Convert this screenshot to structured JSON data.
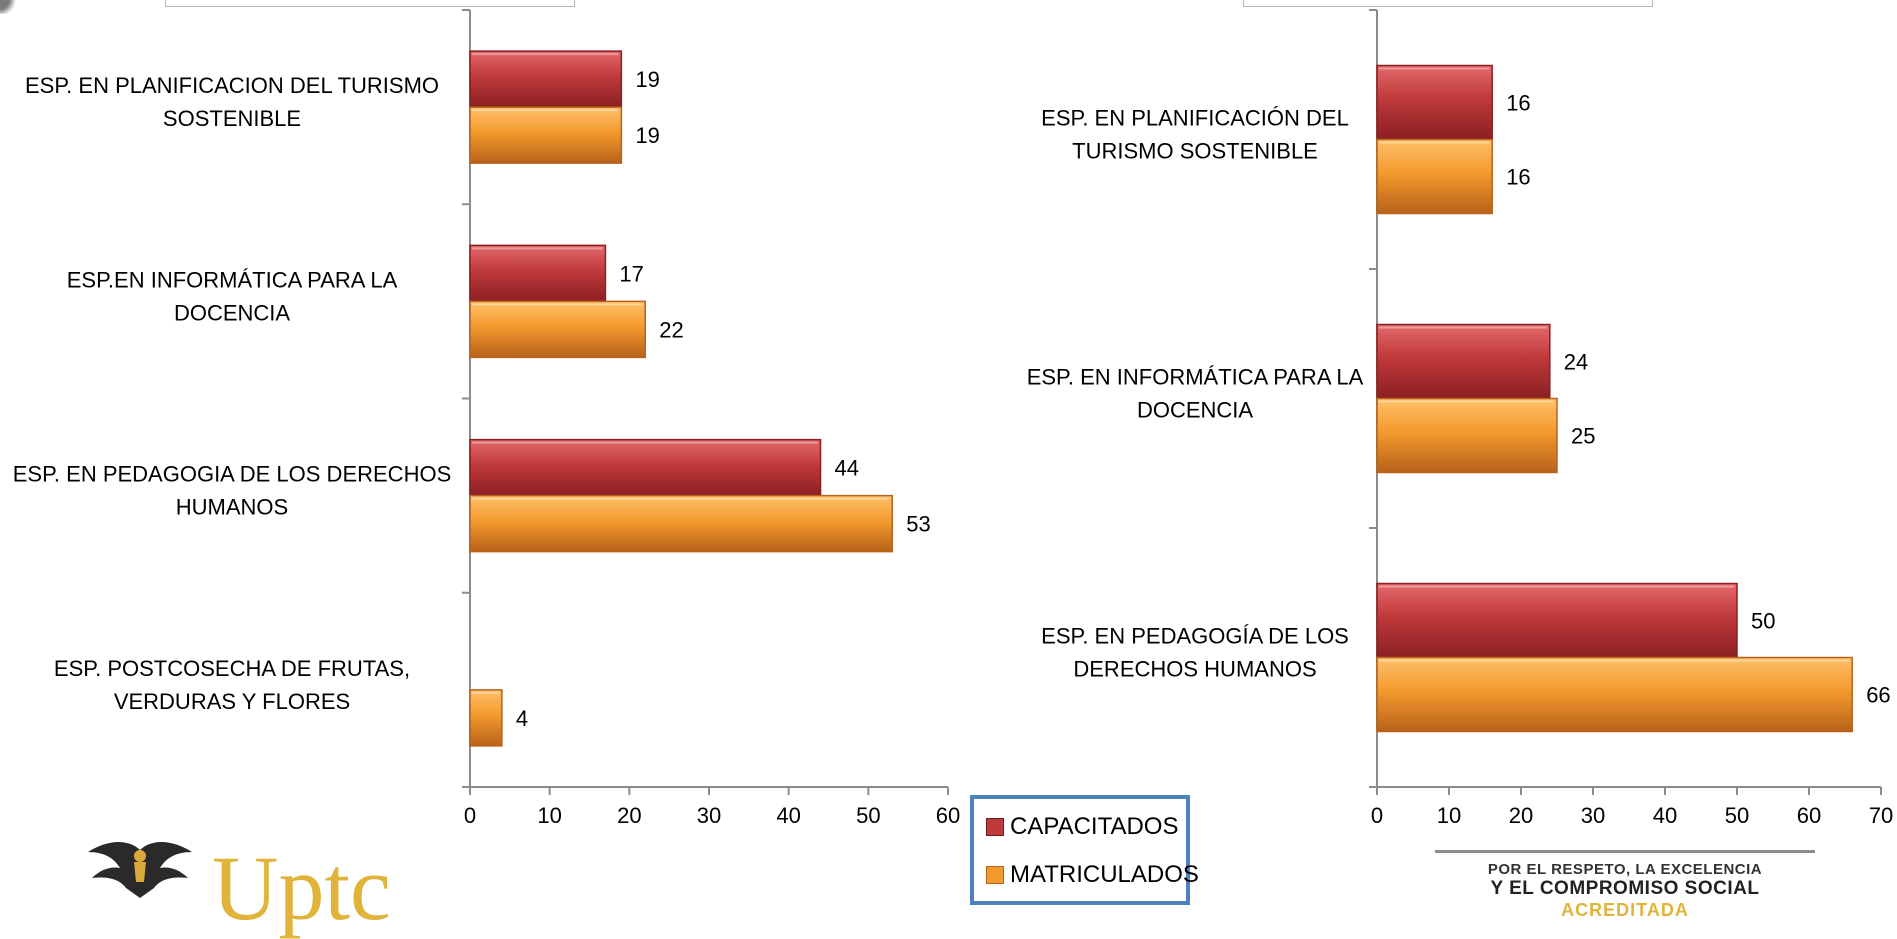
{
  "chart_data": [
    {
      "type": "bar",
      "orientation": "horizontal",
      "categories": [
        "ESP. EN  PLANIFICACION DEL  TURISMO SOSTENIBLE",
        "ESP.EN INFORMÁTICA PARA LA DOCENCIA",
        "ESP. EN PEDAGOGIA DE LOS DERECHOS HUMANOS",
        "ESP. POSTCOSECHA DE FRUTAS, VERDURAS Y FLORES"
      ],
      "category_lines": [
        [
          "ESP. EN  PLANIFICACION DEL  TURISMO",
          "SOSTENIBLE"
        ],
        [
          "ESP.EN INFORMÁTICA PARA LA",
          "DOCENCIA"
        ],
        [
          "ESP. EN PEDAGOGIA DE LOS DERECHOS",
          "HUMANOS"
        ],
        [
          "ESP. POSTCOSECHA DE FRUTAS,",
          "VERDURAS Y FLORES"
        ]
      ],
      "series": [
        {
          "name": "CAPACITADOS",
          "values": [
            19,
            17,
            44,
            null
          ]
        },
        {
          "name": "MATRICULADOS",
          "values": [
            19,
            22,
            53,
            4
          ]
        }
      ],
      "xlim": [
        0,
        60
      ],
      "xticks": [
        0,
        10,
        20,
        30,
        40,
        50,
        60
      ],
      "grid": false
    },
    {
      "type": "bar",
      "orientation": "horizontal",
      "categories": [
        "ESP. EN  PLANIFICACIÓN DEL TURISMO SOSTENIBLE",
        "ESP. EN INFORMÁTICA PARA LA DOCENCIA",
        "ESP. EN PEDAGOGÍA DE LOS DERECHOS HUMANOS"
      ],
      "category_lines": [
        [
          "ESP. EN  PLANIFICACIÓN DEL",
          "TURISMO SOSTENIBLE"
        ],
        [
          "ESP. EN INFORMÁTICA PARA LA",
          "DOCENCIA"
        ],
        [
          "ESP. EN PEDAGOGÍA DE LOS",
          "DERECHOS HUMANOS"
        ]
      ],
      "series": [
        {
          "name": "CAPACITADOS",
          "values": [
            16,
            24,
            50
          ]
        },
        {
          "name": "MATRICULADOS",
          "values": [
            16,
            25,
            66
          ]
        }
      ],
      "xlim": [
        0,
        70
      ],
      "xticks": [
        0,
        10,
        20,
        30,
        40,
        50,
        60,
        70
      ],
      "grid": false
    }
  ],
  "legend": {
    "items": [
      {
        "label": "CAPACITADOS",
        "color": "#c0393b"
      },
      {
        "label": "MATRICULADOS",
        "color": "#f39a2e"
      }
    ],
    "border_color": "#4f81bd"
  },
  "colors": {
    "capacitados": "#c0393b",
    "capacitados_dark": "#8b1f22",
    "matriculados": "#f39a2e",
    "matriculados_dark": "#b8621a",
    "axis": "#8c8c8c"
  },
  "branding": {
    "logo_text": "Uptc",
    "slogan_line1": "POR EL RESPETO, LA EXCELENCIA",
    "slogan_line2": "Y EL COMPROMISO SOCIAL",
    "slogan_line3": "ACREDITADA"
  }
}
